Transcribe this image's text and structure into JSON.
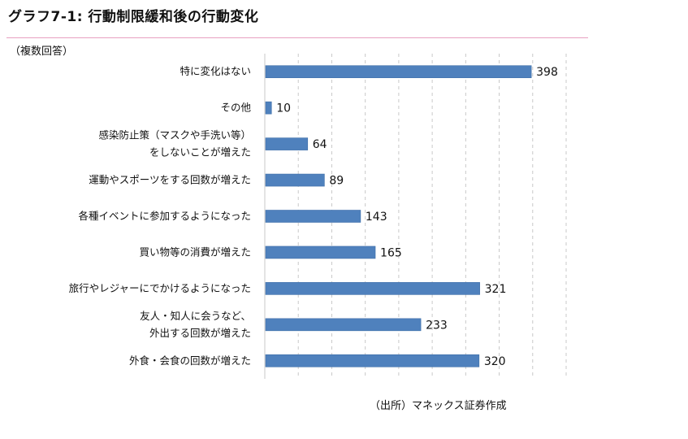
{
  "chart_data": {
    "type": "bar",
    "orientation": "horizontal",
    "title": "グラフ7-1: 行動制限緩和後の行動変化",
    "subtitle": "（複数回答）",
    "source": "（出所）マネックス証券作成",
    "categories": [
      "特に変化はない",
      "その他",
      "感染防止策（マスクや手洗い等）をしないことが増えた",
      "運動やスポーツをする回数が増えた",
      "各種イベントに参加するようになった",
      "買い物等の消費が増えた",
      "旅行やレジャーにでかけるようになった",
      "友人・知人に会うなど、外出する回数が増えた",
      "外食・会食の回数が増えた"
    ],
    "category_label_lines": [
      [
        "特に変化はない"
      ],
      [
        "その他"
      ],
      [
        "感染防止策（マスクや手洗い等）",
        "をしないことが増えた"
      ],
      [
        "運動やスポーツをする回数が増えた"
      ],
      [
        "各種イベントに参加するようになった"
      ],
      [
        "買い物等の消費が増えた"
      ],
      [
        "旅行やレジャーにでかけるようになった"
      ],
      [
        "友人・知人に会うなど、",
        "外出する回数が増えた"
      ],
      [
        "外食・会食の回数が増えた"
      ]
    ],
    "values": [
      398,
      10,
      64,
      89,
      143,
      165,
      321,
      233,
      320
    ],
    "xlim": [
      0,
      450
    ],
    "grid": "vertical dashed",
    "data_labels": true,
    "legend": "none"
  },
  "colors": {
    "bar": "#4f81bd",
    "bar_edge": "#3f6fa8",
    "grid": "#c8c8c8",
    "accent_rule": "#e8a0c0"
  }
}
